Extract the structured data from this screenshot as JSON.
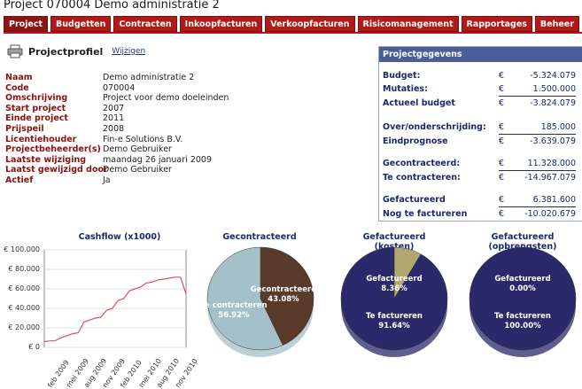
{
  "page": {
    "title": "Project 070004 Demo administratie 2"
  },
  "tabs": [
    {
      "label": "Project",
      "active": true
    },
    {
      "label": "Budgetten",
      "active": false
    },
    {
      "label": "Contracten",
      "active": false
    },
    {
      "label": "Inkoopfacturen",
      "active": false
    },
    {
      "label": "Verkoopfacturen",
      "active": false
    },
    {
      "label": "Risicomanagement",
      "active": false
    },
    {
      "label": "Rapportages",
      "active": false
    },
    {
      "label": "Beheer",
      "active": false
    }
  ],
  "profile": {
    "title": "Projectprofiel",
    "edit_link": "Wijzigen",
    "fields": [
      {
        "label": "Naam",
        "value": "Demo administratie 2"
      },
      {
        "label": "Code",
        "value": "070004"
      },
      {
        "label": "Omschrijving",
        "value": "Project voor demo doeleinden"
      },
      {
        "label": "Start project",
        "value": "2007"
      },
      {
        "label": "Einde project",
        "value": "2011"
      },
      {
        "label": "Prijspeil",
        "value": "2008"
      },
      {
        "label": "Licentiehouder",
        "value": "Fin-e Solutions B.V."
      },
      {
        "label": "Projectbeheerder(s)",
        "value": "Demo Gebruiker"
      },
      {
        "label": "Laatste wijziging",
        "value": "maandag 26 januari 2009"
      },
      {
        "label": "Laatst gewijzigd door",
        "value": "Demo Gebruiker"
      },
      {
        "label": "Actief",
        "value": "Ja"
      }
    ]
  },
  "gegevens": {
    "title": "Projectgegevens",
    "currency": "€",
    "rows": [
      {
        "label": "Budget:",
        "value": "-5.324.079"
      },
      {
        "label": "Mutaties:",
        "value": "1.500.000"
      },
      {
        "label": "Actueel budget",
        "value": "-3.824.079"
      },
      {
        "label": "Over/onderschrijding:",
        "value": "185.000"
      },
      {
        "label": "Eindprognose",
        "value": "-3.639.079"
      },
      {
        "label": "Gecontracteerd:",
        "value": "11.328.000"
      },
      {
        "label": "Te contracteren:",
        "value": "-14.967.079"
      },
      {
        "label": "Gefactureerd",
        "value": "6.381.600"
      },
      {
        "label": "Nog te factureren",
        "value": "-10.020.679"
      }
    ]
  },
  "chart_data": [
    {
      "type": "line",
      "title": "Cashflow (x1000)",
      "yticks": [
        "€ 100.000",
        "€ 80.000",
        "€ 60.000",
        "€ 40.000",
        "€ 20.000",
        "€ 0"
      ],
      "ylim": [
        0,
        100000
      ],
      "xticks": [
        "feb 2009",
        "mei 2009",
        "aug 2009",
        "nov 2009",
        "feb 2010",
        "mei 2010",
        "aug 2010",
        "nov 2010"
      ],
      "color": "#e05050",
      "series": [
        {
          "values": [
            6000,
            6500,
            7000,
            10000,
            12000,
            14000,
            15000,
            26000,
            28000,
            30000,
            31000,
            38000,
            40000,
            48000,
            50000,
            58000,
            60000,
            62000,
            66000,
            67000,
            69000,
            70000,
            71000,
            72000,
            72000,
            55000
          ]
        }
      ]
    },
    {
      "type": "pie",
      "title": "Gecontracteerd",
      "slices": [
        {
          "label": "Gecontracteerd",
          "pct": "43.08%",
          "value": 43.08,
          "color": "#5a3a2a"
        },
        {
          "label": "Te contracteren",
          "pct": "56.92%",
          "value": 56.92,
          "color": "#a4c0c8"
        }
      ]
    },
    {
      "type": "pie",
      "title": "Gefactureerd (kosten)",
      "slices": [
        {
          "label": "Gefactureerd",
          "pct": "8.36%",
          "value": 8.36,
          "color": "#b0a870"
        },
        {
          "label": "Te factureren",
          "pct": "91.64%",
          "value": 91.64,
          "color": "#2a2a6a"
        }
      ]
    },
    {
      "type": "pie",
      "title": "Gefactureerd (opbrengsten)",
      "slices": [
        {
          "label": "Gefactureerd",
          "pct": "0.00%",
          "value": 0.0,
          "color": "#b0a870"
        },
        {
          "label": "Te factureren",
          "pct": "100.00%",
          "value": 100.0,
          "color": "#2a2a6a"
        }
      ]
    }
  ]
}
